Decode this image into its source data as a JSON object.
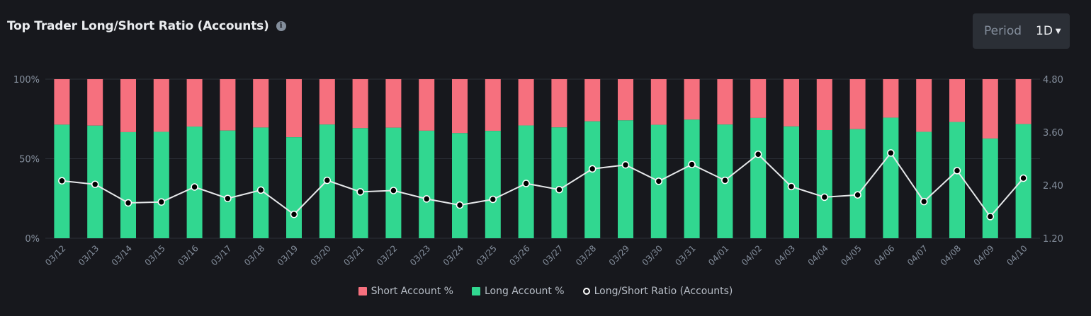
{
  "header": {
    "title": "Top Trader Long/Short Ratio (Accounts)",
    "info_icon": "info-icon",
    "period_label": "Period",
    "period_value": "1D"
  },
  "legend": {
    "short": "Short Account %",
    "long": "Long Account %",
    "ratio": "Long/Short Ratio (Accounts)"
  },
  "colors": {
    "short": "#f6707e",
    "long": "#31d790",
    "ratio_line": "#e6e8ea",
    "background": "#17181d",
    "grid": "#2b2f36",
    "axis_text": "#848e9c"
  },
  "chart_data": {
    "type": "bar",
    "stacked": true,
    "categories": [
      "03/12",
      "03/13",
      "03/14",
      "03/15",
      "03/16",
      "03/17",
      "03/18",
      "03/19",
      "03/20",
      "03/21",
      "03/22",
      "03/23",
      "03/24",
      "03/25",
      "03/26",
      "03/27",
      "03/28",
      "03/29",
      "03/30",
      "03/31",
      "04/01",
      "04/02",
      "04/03",
      "04/04",
      "04/05",
      "04/06",
      "04/07",
      "04/08",
      "04/09",
      "04/10"
    ],
    "series": [
      {
        "name": "Long Account %",
        "axis": "left",
        "values": [
          71.4,
          70.8,
          66.7,
          66.9,
          70.2,
          67.7,
          69.6,
          63.5,
          71.5,
          69.2,
          69.5,
          67.6,
          66.1,
          67.5,
          70.9,
          69.7,
          73.5,
          74.1,
          71.3,
          74.6,
          71.5,
          75.6,
          70.3,
          68.0,
          68.6,
          75.8,
          66.9,
          73.1,
          62.7,
          71.8
        ]
      },
      {
        "name": "Short Account %",
        "axis": "left",
        "values": [
          28.6,
          29.2,
          33.3,
          33.1,
          29.8,
          32.3,
          30.4,
          36.5,
          28.5,
          30.8,
          30.5,
          32.4,
          33.9,
          32.5,
          29.1,
          30.3,
          26.5,
          25.9,
          28.7,
          25.4,
          28.5,
          24.4,
          29.7,
          32.0,
          31.4,
          24.2,
          33.1,
          26.9,
          37.3,
          28.2
        ]
      },
      {
        "name": "Long/Short Ratio (Accounts)",
        "type": "line",
        "axis": "right",
        "values": [
          2.5,
          2.42,
          2.0,
          2.02,
          2.36,
          2.1,
          2.29,
          1.74,
          2.51,
          2.25,
          2.28,
          2.09,
          1.95,
          2.08,
          2.44,
          2.3,
          2.77,
          2.86,
          2.49,
          2.87,
          2.51,
          3.1,
          2.37,
          2.13,
          2.18,
          3.13,
          2.03,
          2.73,
          1.69,
          2.56
        ]
      }
    ],
    "y_left": {
      "ticks": [
        "100%",
        "50%",
        "0%"
      ],
      "range": [
        0,
        100
      ]
    },
    "y_right": {
      "ticks": [
        "4.80",
        "3.60",
        "2.40",
        "1.20"
      ],
      "range": [
        1.2,
        4.8
      ]
    },
    "grid": true,
    "legend_position": "bottom-center"
  }
}
